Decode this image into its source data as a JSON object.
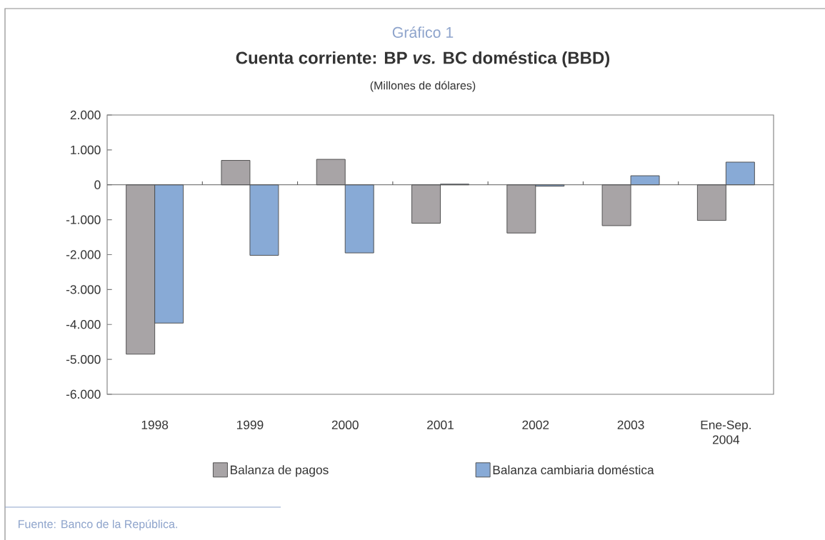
{
  "chart_data": {
    "type": "bar",
    "annotations": [
      "Gráfico 1",
      "Fuente: Banco de la República."
    ],
    "title": "Cuenta corriente: BP *vs.* BC doméstica (BBD)",
    "subtitle": "(Millones de dólares)",
    "categories": [
      "1998",
      "1999",
      "2000",
      "2001",
      "2002",
      "2003",
      "Ene-Sep. 2004"
    ],
    "series": [
      {
        "name": "Balanza de pagos",
        "color": "#a8a4a6",
        "values": [
          -4850,
          700,
          730,
          -1100,
          -1380,
          -1170,
          -1020
        ]
      },
      {
        "name": "Balanza cambiaria doméstica",
        "color": "#88aad6",
        "values": [
          -3960,
          -2020,
          -1950,
          20,
          -40,
          260,
          650
        ]
      }
    ],
    "ylim": [
      -6000,
      2000
    ],
    "yticks": [
      {
        "value": 2000,
        "label": "2.000"
      },
      {
        "value": 1000,
        "label": "1.000"
      },
      0,
      {
        "value": -1000,
        "label": "-1.000"
      },
      {
        "value": -2000,
        "label": "-2.000"
      },
      {
        "value": -3000,
        "label": "-3.000"
      },
      {
        "value": -4000,
        "label": "-4.000"
      },
      {
        "value": -5000,
        "label": "-5.000"
      },
      {
        "value": -6000,
        "label": "-6.000"
      }
    ],
    "legend": "bottom"
  }
}
